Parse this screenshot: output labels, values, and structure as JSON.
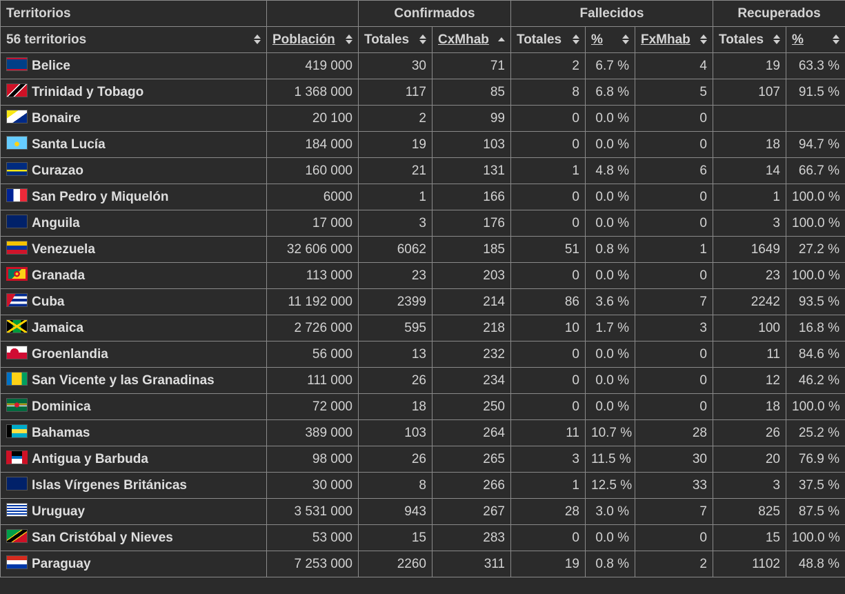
{
  "header": {
    "group_territorios": "Territorios",
    "group_confirmados": "Confirmados",
    "group_fallecidos": "Fallecidos",
    "group_recuperados": "Recuperados",
    "count_label": "56 territorios",
    "col_poblacion": "Población",
    "col_conf_totales": "Totales",
    "col_cxmhab": "CxMhab",
    "col_fall_totales": "Totales",
    "col_fall_pct": "%",
    "col_fxmhab": "FxMhab",
    "col_rec_totales": "Totales",
    "col_rec_pct": "%"
  },
  "sort": {
    "column": "CxMhab",
    "direction": "ascending"
  },
  "rows": [
    {
      "flag": "flag-belize-icon",
      "name": "Belice",
      "poblacion": "419 000",
      "conf_totales": "30",
      "cxmhab": "71",
      "fall_totales": "2",
      "fall_pct": "6.7 %",
      "fxmhab": "4",
      "rec_totales": "19",
      "rec_pct": "63.3 %"
    },
    {
      "flag": "flag-trinidad-tobago-icon",
      "name": "Trinidad y Tobago",
      "poblacion": "1 368 000",
      "conf_totales": "117",
      "cxmhab": "85",
      "fall_totales": "8",
      "fall_pct": "6.8 %",
      "fxmhab": "5",
      "rec_totales": "107",
      "rec_pct": "91.5 %"
    },
    {
      "flag": "flag-bonaire-icon",
      "name": "Bonaire",
      "poblacion": "20 100",
      "conf_totales": "2",
      "cxmhab": "99",
      "fall_totales": "0",
      "fall_pct": "0.0 %",
      "fxmhab": "0",
      "rec_totales": "",
      "rec_pct": ""
    },
    {
      "flag": "flag-saint-lucia-icon",
      "name": "Santa Lucía",
      "poblacion": "184 000",
      "conf_totales": "19",
      "cxmhab": "103",
      "fall_totales": "0",
      "fall_pct": "0.0 %",
      "fxmhab": "0",
      "rec_totales": "18",
      "rec_pct": "94.7 %"
    },
    {
      "flag": "flag-curacao-icon",
      "name": "Curazao",
      "poblacion": "160 000",
      "conf_totales": "21",
      "cxmhab": "131",
      "fall_totales": "1",
      "fall_pct": "4.8 %",
      "fxmhab": "6",
      "rec_totales": "14",
      "rec_pct": "66.7 %"
    },
    {
      "flag": "flag-france-icon",
      "name": "San Pedro y Miquelón",
      "poblacion": "6000",
      "conf_totales": "1",
      "cxmhab": "166",
      "fall_totales": "0",
      "fall_pct": "0.0 %",
      "fxmhab": "0",
      "rec_totales": "1",
      "rec_pct": "100.0 %"
    },
    {
      "flag": "flag-anguilla-icon",
      "name": "Anguila",
      "poblacion": "17 000",
      "conf_totales": "3",
      "cxmhab": "176",
      "fall_totales": "0",
      "fall_pct": "0.0 %",
      "fxmhab": "0",
      "rec_totales": "3",
      "rec_pct": "100.0 %"
    },
    {
      "flag": "flag-venezuela-icon",
      "name": "Venezuela",
      "poblacion": "32 606 000",
      "conf_totales": "6062",
      "cxmhab": "185",
      "fall_totales": "51",
      "fall_pct": "0.8 %",
      "fxmhab": "1",
      "rec_totales": "1649",
      "rec_pct": "27.2 %"
    },
    {
      "flag": "flag-grenada-icon",
      "name": "Granada",
      "poblacion": "113 000",
      "conf_totales": "23",
      "cxmhab": "203",
      "fall_totales": "0",
      "fall_pct": "0.0 %",
      "fxmhab": "0",
      "rec_totales": "23",
      "rec_pct": "100.0 %"
    },
    {
      "flag": "flag-cuba-icon",
      "name": "Cuba",
      "poblacion": "11 192 000",
      "conf_totales": "2399",
      "cxmhab": "214",
      "fall_totales": "86",
      "fall_pct": "3.6 %",
      "fxmhab": "7",
      "rec_totales": "2242",
      "rec_pct": "93.5 %"
    },
    {
      "flag": "flag-jamaica-icon",
      "name": "Jamaica",
      "poblacion": "2 726 000",
      "conf_totales": "595",
      "cxmhab": "218",
      "fall_totales": "10",
      "fall_pct": "1.7 %",
      "fxmhab": "3",
      "rec_totales": "100",
      "rec_pct": "16.8 %"
    },
    {
      "flag": "flag-greenland-icon",
      "name": "Groenlandia",
      "poblacion": "56 000",
      "conf_totales": "13",
      "cxmhab": "232",
      "fall_totales": "0",
      "fall_pct": "0.0 %",
      "fxmhab": "0",
      "rec_totales": "11",
      "rec_pct": "84.6 %"
    },
    {
      "flag": "flag-saint-vincent-icon",
      "name": "San Vicente y las Granadinas",
      "poblacion": "111 000",
      "conf_totales": "26",
      "cxmhab": "234",
      "fall_totales": "0",
      "fall_pct": "0.0 %",
      "fxmhab": "0",
      "rec_totales": "12",
      "rec_pct": "46.2 %"
    },
    {
      "flag": "flag-dominica-icon",
      "name": "Dominica",
      "poblacion": "72 000",
      "conf_totales": "18",
      "cxmhab": "250",
      "fall_totales": "0",
      "fall_pct": "0.0 %",
      "fxmhab": "0",
      "rec_totales": "18",
      "rec_pct": "100.0 %"
    },
    {
      "flag": "flag-bahamas-icon",
      "name": "Bahamas",
      "poblacion": "389 000",
      "conf_totales": "103",
      "cxmhab": "264",
      "fall_totales": "11",
      "fall_pct": "10.7 %",
      "fxmhab": "28",
      "rec_totales": "26",
      "rec_pct": "25.2 %"
    },
    {
      "flag": "flag-antigua-barbuda-icon",
      "name": "Antigua y Barbuda",
      "poblacion": "98 000",
      "conf_totales": "26",
      "cxmhab": "265",
      "fall_totales": "3",
      "fall_pct": "11.5 %",
      "fxmhab": "30",
      "rec_totales": "20",
      "rec_pct": "76.9 %"
    },
    {
      "flag": "flag-british-virgin-islands-icon",
      "name": "Islas Vírgenes Británicas",
      "poblacion": "30 000",
      "conf_totales": "8",
      "cxmhab": "266",
      "fall_totales": "1",
      "fall_pct": "12.5 %",
      "fxmhab": "33",
      "rec_totales": "3",
      "rec_pct": "37.5 %"
    },
    {
      "flag": "flag-uruguay-icon",
      "name": "Uruguay",
      "poblacion": "3 531 000",
      "conf_totales": "943",
      "cxmhab": "267",
      "fall_totales": "28",
      "fall_pct": "3.0 %",
      "fxmhab": "7",
      "rec_totales": "825",
      "rec_pct": "87.5 %"
    },
    {
      "flag": "flag-saint-kitts-nevis-icon",
      "name": "San Cristóbal y Nieves",
      "poblacion": "53 000",
      "conf_totales": "15",
      "cxmhab": "283",
      "fall_totales": "0",
      "fall_pct": "0.0 %",
      "fxmhab": "0",
      "rec_totales": "15",
      "rec_pct": "100.0 %"
    },
    {
      "flag": "flag-paraguay-icon",
      "name": "Paraguay",
      "poblacion": "7 253 000",
      "conf_totales": "2260",
      "cxmhab": "311",
      "fall_totales": "19",
      "fall_pct": "0.8 %",
      "fxmhab": "2",
      "rec_totales": "1102",
      "rec_pct": "48.8 %"
    }
  ]
}
